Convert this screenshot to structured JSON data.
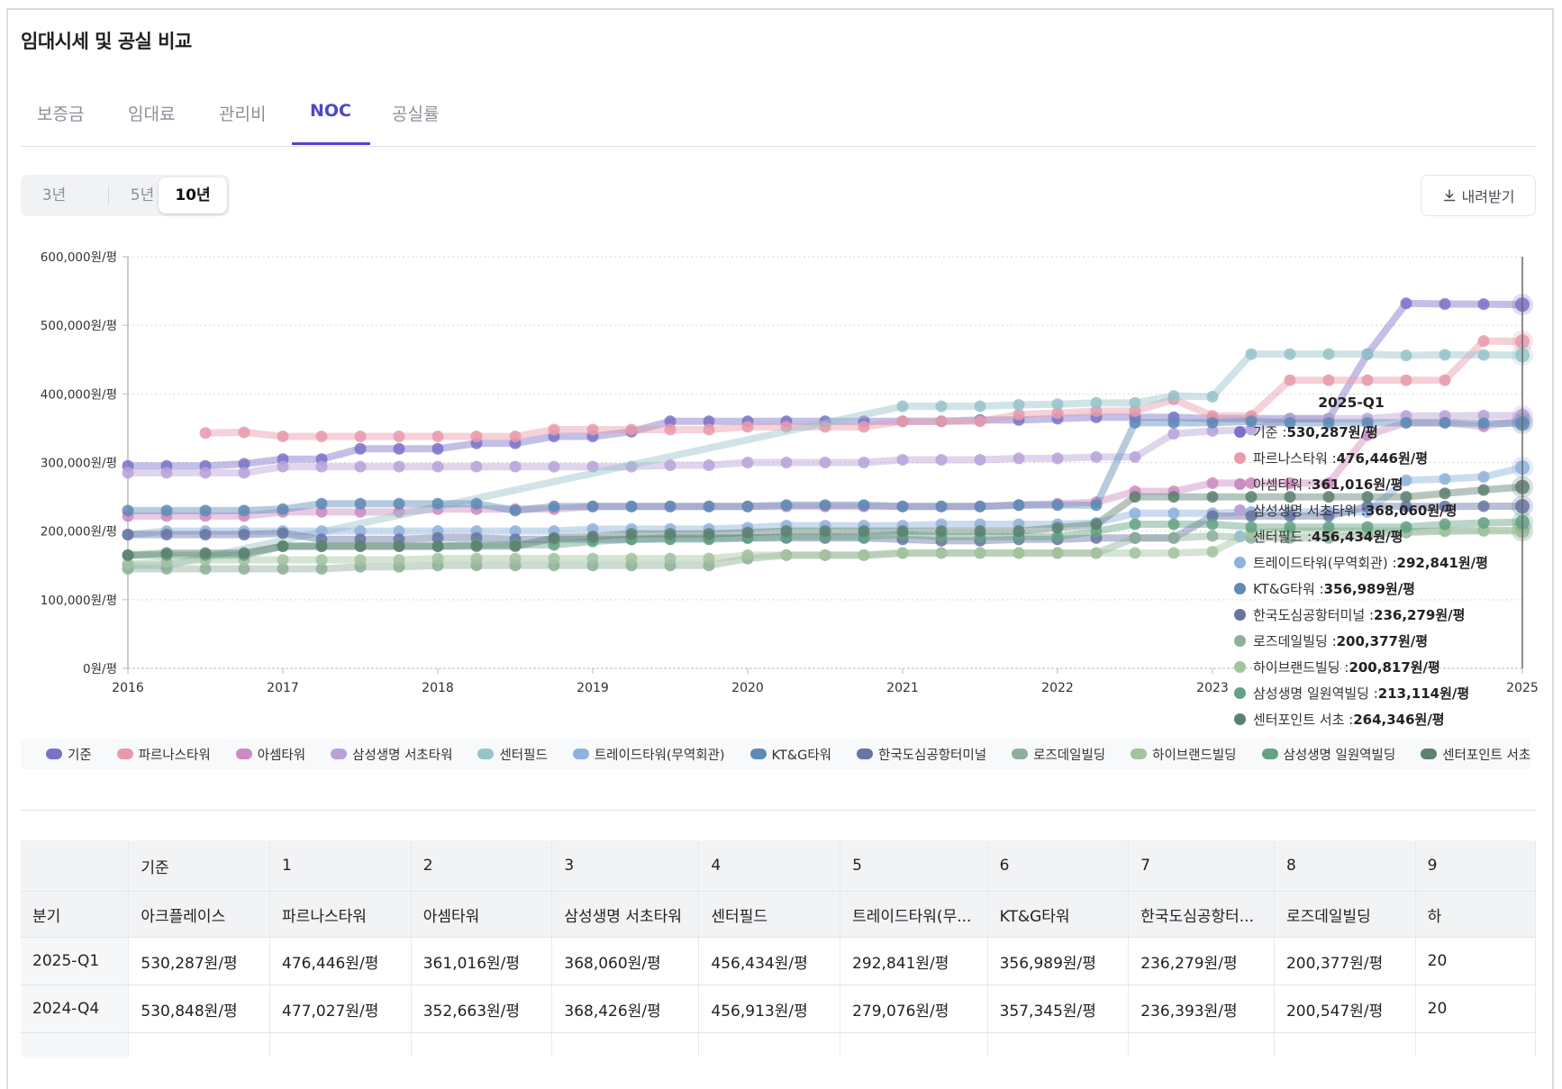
{
  "title": "임대시세 및 공실 비교",
  "tabs": [
    {
      "label": "보증금",
      "active": false
    },
    {
      "label": "임대료",
      "active": false
    },
    {
      "label": "관리비",
      "active": false
    },
    {
      "label": "NOC",
      "active": true
    },
    {
      "label": "공실률",
      "active": false
    }
  ],
  "range_buttons": [
    {
      "label": "3년",
      "active": false
    },
    {
      "label": "5년",
      "active": false
    },
    {
      "label": "10년",
      "active": true
    }
  ],
  "download_label": "내려받기",
  "accent_color": "#4f46c8",
  "chart_data": {
    "type": "line",
    "title": "",
    "xlabel": "",
    "ylabel": "",
    "unit_suffix": "원/평",
    "ylim": [
      0,
      600000
    ],
    "y_ticks": [
      0,
      100000,
      200000,
      300000,
      400000,
      500000,
      600000
    ],
    "y_tick_labels": [
      "0원/평",
      "100,000원/평",
      "200,000원/평",
      "300,000원/평",
      "400,000원/평",
      "500,000원/평",
      "600,000원/평"
    ],
    "x_tick_labels": [
      "2016",
      "2017",
      "2018",
      "2019",
      "2020",
      "2021",
      "2022",
      "2023",
      "2025"
    ],
    "x_tick_years": [
      2016,
      2017,
      2018,
      2019,
      2020,
      2021,
      2022,
      2023,
      2025
    ],
    "x": [
      "2016-Q1",
      "2016-Q2",
      "2016-Q3",
      "2016-Q4",
      "2017-Q1",
      "2017-Q2",
      "2017-Q3",
      "2017-Q4",
      "2018-Q1",
      "2018-Q2",
      "2018-Q3",
      "2018-Q4",
      "2019-Q1",
      "2019-Q2",
      "2019-Q3",
      "2019-Q4",
      "2020-Q1",
      "2020-Q2",
      "2020-Q3",
      "2020-Q4",
      "2021-Q1",
      "2021-Q2",
      "2021-Q3",
      "2021-Q4",
      "2022-Q1",
      "2022-Q2",
      "2022-Q3",
      "2022-Q4",
      "2023-Q1",
      "2023-Q2",
      "2023-Q3",
      "2023-Q4",
      "2024-Q1",
      "2024-Q2",
      "2024-Q3",
      "2024-Q4",
      "2025-Q1"
    ],
    "grid": true,
    "legend_position": "bottom",
    "series": [
      {
        "name": "기준",
        "color": "#7b72c8",
        "values": [
          295000,
          295000,
          295000,
          298000,
          305000,
          305000,
          320000,
          320000,
          320000,
          328000,
          328000,
          338000,
          338000,
          345000,
          360000,
          360000,
          360000,
          360000,
          360000,
          360000,
          360000,
          360000,
          362000,
          362000,
          364000,
          366000,
          366000,
          366000,
          364000,
          364000,
          364000,
          364000,
          458000,
          532000,
          531000,
          530848,
          530287
        ]
      },
      {
        "name": "파르나스타워",
        "color": "#e89aab",
        "values": [
          null,
          null,
          343000,
          344000,
          338000,
          338000,
          338000,
          338000,
          338000,
          338000,
          338000,
          348000,
          348000,
          348000,
          348000,
          348000,
          352000,
          352000,
          352000,
          352000,
          360000,
          360000,
          360000,
          370000,
          372000,
          375000,
          375000,
          392000,
          368000,
          368000,
          420000,
          420000,
          420000,
          420000,
          420000,
          477027,
          476446
        ]
      },
      {
        "name": "아셈타워",
        "color": "#cc8bc2",
        "values": [
          222000,
          222000,
          222000,
          222000,
          228000,
          228000,
          228000,
          228000,
          232000,
          232000,
          232000,
          232000,
          236000,
          236000,
          236000,
          236000,
          236000,
          236000,
          236000,
          236000,
          236000,
          236000,
          236000,
          238000,
          240000,
          242000,
          258000,
          258000,
          270000,
          270000,
          270000,
          270000,
          340000,
          358000,
          358000,
          352663,
          361016
        ]
      },
      {
        "name": "삼성생명 서초타워",
        "color": "#b8a2d8",
        "values": [
          285000,
          285000,
          285000,
          285000,
          294000,
          294000,
          294000,
          294000,
          294000,
          294000,
          294000,
          294000,
          294000,
          294000,
          296000,
          296000,
          300000,
          300000,
          300000,
          300000,
          304000,
          304000,
          304000,
          306000,
          306000,
          308000,
          308000,
          342000,
          346000,
          348000,
          364000,
          364000,
          364000,
          368000,
          368000,
          368426,
          368060
        ]
      },
      {
        "name": "센터필드",
        "color": "#97c3c9",
        "values": [
          150000,
          150000,
          null,
          null,
          null,
          null,
          null,
          null,
          null,
          null,
          null,
          null,
          null,
          null,
          null,
          null,
          null,
          null,
          null,
          null,
          382000,
          382000,
          382000,
          384000,
          385000,
          387000,
          387000,
          397000,
          396000,
          458000,
          458000,
          458000,
          458000,
          456000,
          457000,
          456913,
          456434
        ]
      },
      {
        "name": "트레이드타워(무역회관)",
        "color": "#8fb2dc",
        "values": [
          195000,
          200000,
          200000,
          200000,
          200000,
          200000,
          200000,
          200000,
          200000,
          200000,
          200000,
          200000,
          203000,
          203000,
          203000,
          203000,
          205000,
          208000,
          208000,
          208000,
          208000,
          210000,
          210000,
          210000,
          210000,
          212000,
          226000,
          226000,
          226000,
          228000,
          228000,
          228000,
          228000,
          274000,
          276000,
          279076,
          292841
        ]
      },
      {
        "name": "KT&G타워",
        "color": "#5e8bb5",
        "values": [
          230000,
          230000,
          230000,
          230000,
          232000,
          240000,
          240000,
          240000,
          240000,
          240000,
          230000,
          236000,
          236000,
          236000,
          236000,
          236000,
          236000,
          238000,
          238000,
          238000,
          236000,
          236000,
          236000,
          238000,
          238000,
          238000,
          358000,
          358000,
          358000,
          360000,
          358000,
          358000,
          358000,
          358000,
          358000,
          357345,
          356989
        ]
      },
      {
        "name": "한국도심공항터미널",
        "color": "#6775a3",
        "values": [
          195000,
          195000,
          195000,
          195000,
          197000,
          188000,
          188000,
          188000,
          190000,
          190000,
          188000,
          188000,
          188000,
          188000,
          190000,
          190000,
          190000,
          190000,
          190000,
          190000,
          188000,
          186000,
          186000,
          188000,
          188000,
          190000,
          190000,
          190000,
          222000,
          222000,
          222000,
          222000,
          236000,
          236000,
          236000,
          236393,
          236279
        ]
      },
      {
        "name": "로즈데일빌딩",
        "color": "#8fae9c",
        "values": [
          145000,
          145000,
          145000,
          145000,
          145000,
          145000,
          148000,
          148000,
          150000,
          150000,
          150000,
          150000,
          150000,
          150000,
          150000,
          150000,
          160000,
          165000,
          165000,
          165000,
          168000,
          168000,
          168000,
          168000,
          168000,
          168000,
          190000,
          190000,
          193000,
          190000,
          190000,
          190000,
          195000,
          198000,
          200000,
          200547,
          200377
        ]
      },
      {
        "name": "하이브랜드빌딩",
        "color": "#a3c39e",
        "values": [
          152000,
          155000,
          158000,
          158000,
          158000,
          158000,
          158000,
          158000,
          160000,
          160000,
          160000,
          160000,
          160000,
          160000,
          160000,
          160000,
          165000,
          165000,
          165000,
          165000,
          168000,
          168000,
          168000,
          168000,
          168000,
          168000,
          168000,
          168000,
          170000,
          198000,
          200000,
          200000,
          200000,
          200000,
          200000,
          201000,
          200817
        ]
      },
      {
        "name": "삼성생명 일원역빌딩",
        "color": "#64a285",
        "values": [
          165000,
          165000,
          165000,
          165000,
          178000,
          178000,
          178000,
          178000,
          178000,
          180000,
          180000,
          180000,
          185000,
          188000,
          188000,
          188000,
          190000,
          192000,
          192000,
          192000,
          195000,
          192000,
          192000,
          192000,
          192000,
          200000,
          210000,
          210000,
          210000,
          206000,
          206000,
          206000,
          206000,
          206000,
          210000,
          212000,
          213114
        ]
      },
      {
        "name": "센터포인트 서초",
        "color": "#5d8070",
        "values": [
          165000,
          168000,
          168000,
          168000,
          178000,
          178000,
          178000,
          178000,
          178000,
          178000,
          178000,
          190000,
          192000,
          196000,
          196000,
          196000,
          198000,
          200000,
          200000,
          200000,
          200000,
          200000,
          200000,
          200000,
          205000,
          210000,
          250000,
          250000,
          250000,
          250000,
          250000,
          250000,
          250000,
          250000,
          255000,
          260000,
          264346
        ]
      }
    ]
  },
  "tooltip": {
    "title": "2025-Q1",
    "rows": [
      {
        "name": "기준",
        "value": "530,287원/평",
        "color": "#7b72c8"
      },
      {
        "name": "파르나스타워",
        "value": "476,446원/평",
        "color": "#e89aab"
      },
      {
        "name": "아셈타워",
        "value": "361,016원/평",
        "color": "#cc8bc2"
      },
      {
        "name": "삼성생명 서초타워",
        "value": "368,060원/평",
        "color": "#b8a2d8"
      },
      {
        "name": "센터필드",
        "value": "456,434원/평",
        "color": "#97c3c9"
      },
      {
        "name": "트레이드타워(무역회관)",
        "value": "292,841원/평",
        "color": "#8fb2dc"
      },
      {
        "name": "KT&G타워",
        "value": "356,989원/평",
        "color": "#5e8bb5"
      },
      {
        "name": "한국도심공항터미널",
        "value": "236,279원/평",
        "color": "#6775a3"
      },
      {
        "name": "로즈데일빌딩",
        "value": "200,377원/평",
        "color": "#8fae9c"
      },
      {
        "name": "하이브랜드빌딩",
        "value": "200,817원/평",
        "color": "#a3c39e"
      },
      {
        "name": "삼성생명 일원역빌딩",
        "value": "213,114원/평",
        "color": "#64a285"
      },
      {
        "name": "센터포인트 서초",
        "value": "264,346원/평",
        "color": "#5d8070"
      }
    ]
  },
  "table": {
    "header_row1": [
      "",
      "기준",
      "1",
      "2",
      "3",
      "4",
      "5",
      "6",
      "7",
      "8",
      "9"
    ],
    "header_row2": [
      "분기",
      "아크플레이스",
      "파르나스타워",
      "아셈타워",
      "삼성생명 서초타워",
      "센터필드",
      "트레이드타워(무...",
      "KT&G타워",
      "한국도심공항터...",
      "로즈데일빌딩",
      "하"
    ],
    "rows": [
      {
        "quarter": "2025-Q1",
        "cells": [
          "530,287원/평",
          "476,446원/평",
          "361,016원/평",
          "368,060원/평",
          "456,434원/평",
          "292,841원/평",
          "356,989원/평",
          "236,279원/평",
          "200,377원/평",
          "20"
        ]
      },
      {
        "quarter": "2024-Q4",
        "cells": [
          "530,848원/평",
          "477,027원/평",
          "352,663원/평",
          "368,426원/평",
          "456,913원/평",
          "279,076원/평",
          "357,345원/평",
          "236,393원/평",
          "200,547원/평",
          "20"
        ]
      }
    ]
  }
}
